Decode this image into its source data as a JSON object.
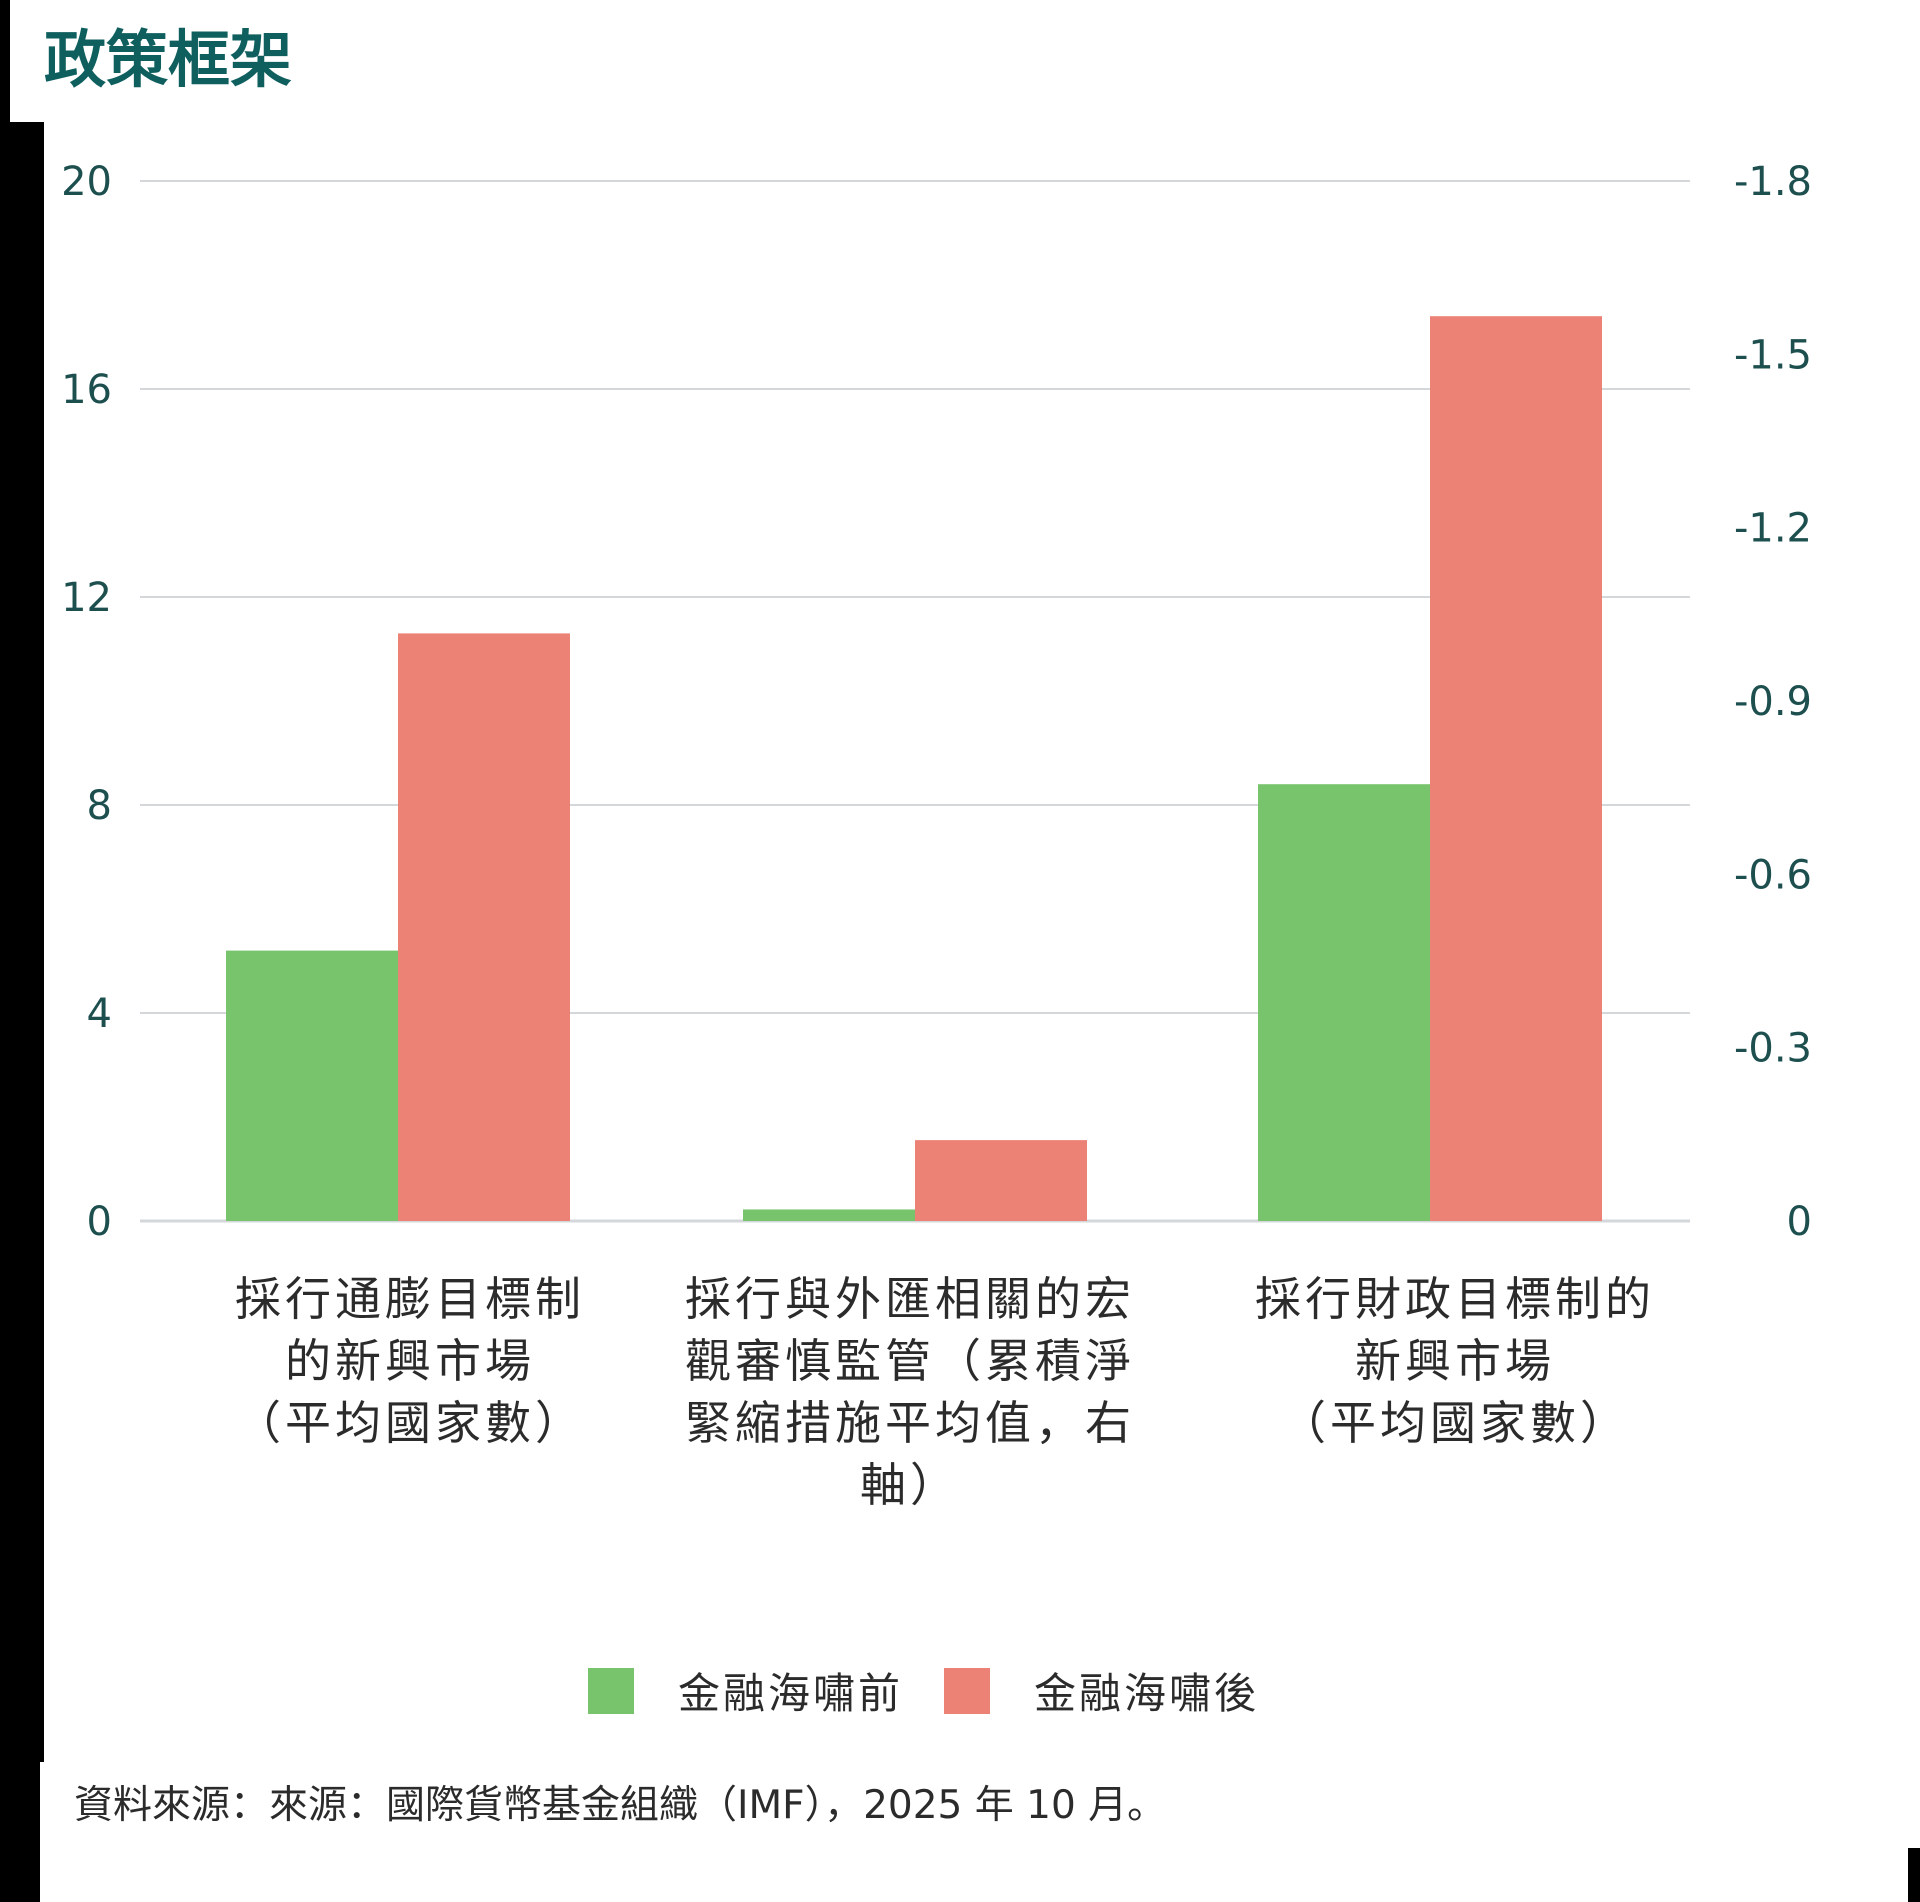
{
  "title": "政策框架",
  "colors": {
    "before": "#77c46c",
    "after": "#ec8276",
    "title": "#0f5f5f",
    "tick": "#1d4f4f",
    "grid": "#d4d7d9"
  },
  "chart_data": {
    "type": "bar",
    "categories": [
      "採行通膨目標制的新興市場（平均國家數）",
      "採行與外匯相關的宏觀審慎監管（累積淨緊縮措施平均值，右軸）",
      "採行財政目標制的新興市場（平均國家數）"
    ],
    "category_lines": [
      [
        "採行通膨目標制",
        "的新興市場",
        "（平均國家數）"
      ],
      [
        "採行與外匯相關的宏",
        "觀審慎監管（累積淨",
        "緊縮措施平均值，右",
        "軸）"
      ],
      [
        "採行財政目標制的",
        "新興市場",
        "（平均國家數）"
      ]
    ],
    "category_axis": [
      "left",
      "right",
      "left"
    ],
    "series": [
      {
        "name": "金融海嘯前",
        "values": [
          5.2,
          -0.02,
          8.4
        ]
      },
      {
        "name": "金融海嘯後",
        "values": [
          11.3,
          -0.14,
          17.4
        ]
      }
    ],
    "left_axis": {
      "ylim": [
        0,
        20
      ],
      "ticks": [
        "0",
        "4",
        "8",
        "12",
        "16",
        "20"
      ]
    },
    "right_axis": {
      "ylim": [
        0,
        -1.8
      ],
      "ticks": [
        "0",
        "-0.3",
        "-0.6",
        "-0.9",
        "-1.2",
        "-1.5",
        "-1.8"
      ]
    },
    "grid": true,
    "legend_position": "bottom-center"
  },
  "source": "資料來源：來源：國際貨幣基金組織（IMF），2025 年 10 月。"
}
